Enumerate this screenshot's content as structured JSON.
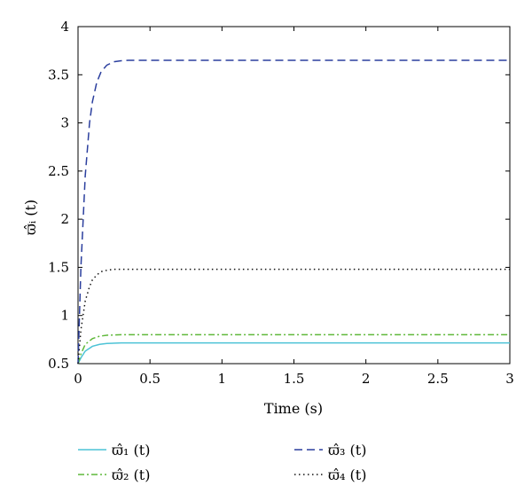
{
  "chart_data": {
    "type": "line",
    "xlabel": "Time (s)",
    "ylabel": "ϖ̂ᵢ (t)",
    "xlim": [
      0,
      3
    ],
    "ylim": [
      0.5,
      4
    ],
    "xticks": [
      0,
      0.5,
      1,
      1.5,
      2,
      2.5,
      3
    ],
    "yticks": [
      0.5,
      1,
      1.5,
      2,
      2.5,
      3,
      3.5,
      4
    ],
    "xtick_labels": [
      "0",
      "0.5",
      "1",
      "1.5",
      "2",
      "2.5",
      "3"
    ],
    "ytick_labels": [
      "0.5",
      "1",
      "1.5",
      "2",
      "2.5",
      "3",
      "3.5",
      "4"
    ],
    "grid": false,
    "legend_position": "bottom",
    "series": [
      {
        "name": "ϖ̂₁ (t)",
        "color": "#4cc3d6",
        "style": "solid",
        "x": [
          0,
          0.02,
          0.05,
          0.1,
          0.15,
          0.2,
          0.3,
          0.4,
          0.5,
          1,
          1.5,
          2,
          2.5,
          3
        ],
        "y": [
          0.5,
          0.56,
          0.63,
          0.68,
          0.7,
          0.71,
          0.715,
          0.715,
          0.715,
          0.715,
          0.715,
          0.715,
          0.715,
          0.715
        ]
      },
      {
        "name": "ϖ̂₂ (t)",
        "color": "#5fb83a",
        "style": "dashdot",
        "x": [
          0,
          0.02,
          0.05,
          0.1,
          0.15,
          0.2,
          0.3,
          0.4,
          0.5,
          1,
          1.5,
          2,
          2.5,
          3
        ],
        "y": [
          0.5,
          0.6,
          0.7,
          0.76,
          0.785,
          0.795,
          0.8,
          0.8,
          0.8,
          0.8,
          0.8,
          0.8,
          0.8,
          0.8
        ]
      },
      {
        "name": "ϖ̂₃ (t)",
        "color": "#2b3f9e",
        "style": "dashed",
        "x": [
          0,
          0.02,
          0.05,
          0.08,
          0.1,
          0.13,
          0.16,
          0.2,
          0.25,
          0.3,
          0.35,
          0.4,
          0.5,
          1,
          1.5,
          2,
          2.5,
          3
        ],
        "y": [
          0.5,
          1.5,
          2.45,
          3.0,
          3.22,
          3.42,
          3.53,
          3.6,
          3.635,
          3.645,
          3.65,
          3.65,
          3.65,
          3.65,
          3.65,
          3.65,
          3.65,
          3.65
        ]
      },
      {
        "name": "ϖ̂₄ (t)",
        "color": "#111111",
        "style": "dotted",
        "x": [
          0,
          0.02,
          0.05,
          0.08,
          0.1,
          0.13,
          0.16,
          0.2,
          0.25,
          0.3,
          0.4,
          0.5,
          1,
          1.5,
          2,
          2.5,
          3
        ],
        "y": [
          0.5,
          0.85,
          1.15,
          1.3,
          1.37,
          1.42,
          1.455,
          1.47,
          1.48,
          1.48,
          1.48,
          1.48,
          1.48,
          1.48,
          1.48,
          1.48,
          1.48
        ]
      }
    ]
  }
}
